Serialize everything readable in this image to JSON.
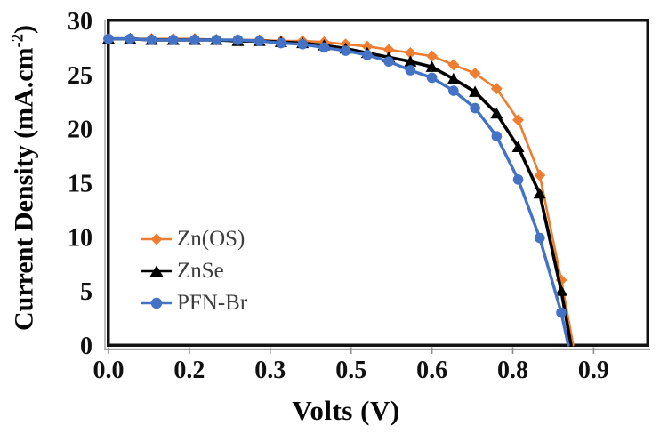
{
  "figure": {
    "background": "#ffffff",
    "plot_border_color": "#121212",
    "tick_color": "#8c8c8c",
    "accent_edge_color": "#a8a8a8"
  },
  "chart_data": {
    "type": "line",
    "title": "",
    "xlabel": "Volts (V)",
    "ylabel": "Current Density (mA.cm⁻²)",
    "ylabel_main": "Current Density (mA.cm",
    "ylabel_sup": "-2",
    "ylabel_close": ")",
    "xlim": [
      0,
      1.0
    ],
    "ylim": [
      0,
      30
    ],
    "grid": false,
    "legend_position": "inside lower-left",
    "x_ticks": [
      {
        "v": 0.0,
        "label": "0.0"
      },
      {
        "v": 0.15,
        "label": "0.2"
      },
      {
        "v": 0.3,
        "label": "0.3"
      },
      {
        "v": 0.45,
        "label": "0.5"
      },
      {
        "v": 0.6,
        "label": "0.6"
      },
      {
        "v": 0.75,
        "label": "0.8"
      },
      {
        "v": 0.9,
        "label": "0.9"
      }
    ],
    "y_ticks": [
      {
        "v": 0,
        "label": "0"
      },
      {
        "v": 5,
        "label": "5"
      },
      {
        "v": 10,
        "label": "10"
      },
      {
        "v": 15,
        "label": "15"
      },
      {
        "v": 20,
        "label": "20"
      },
      {
        "v": 25,
        "label": "25"
      },
      {
        "v": 30,
        "label": "30"
      }
    ],
    "series": [
      {
        "name": "Zn(OS)",
        "color": "#ED7D31",
        "marker": "diamond",
        "line_width": 2.6,
        "x": [
          0.0,
          0.04,
          0.08,
          0.12,
          0.16,
          0.2,
          0.24,
          0.28,
          0.32,
          0.36,
          0.4,
          0.44,
          0.48,
          0.52,
          0.56,
          0.6,
          0.64,
          0.68,
          0.72,
          0.76,
          0.8,
          0.84,
          0.862
        ],
        "y": [
          28.3,
          28.3,
          28.3,
          28.3,
          28.3,
          28.2,
          28.2,
          28.2,
          28.1,
          28.1,
          28.0,
          27.8,
          27.6,
          27.3,
          27.0,
          26.7,
          25.9,
          25.1,
          23.7,
          20.8,
          15.7,
          6.0,
          0
        ]
      },
      {
        "name": "ZnSe",
        "color": "#000000",
        "marker": "triangle",
        "line_width": 3.6,
        "x": [
          0.0,
          0.04,
          0.08,
          0.12,
          0.16,
          0.2,
          0.24,
          0.28,
          0.32,
          0.36,
          0.4,
          0.44,
          0.48,
          0.52,
          0.56,
          0.6,
          0.64,
          0.68,
          0.72,
          0.76,
          0.8,
          0.84,
          0.858
        ],
        "y": [
          28.3,
          28.3,
          28.2,
          28.2,
          28.2,
          28.2,
          28.1,
          28.1,
          28.0,
          27.9,
          27.7,
          27.4,
          27.0,
          26.6,
          26.2,
          25.7,
          24.6,
          23.4,
          21.4,
          18.3,
          14.0,
          5.0,
          0
        ]
      },
      {
        "name": "PFN-Br",
        "color": "#4472C4",
        "marker": "circle",
        "line_width": 3.4,
        "x": [
          0.0,
          0.04,
          0.08,
          0.12,
          0.16,
          0.2,
          0.24,
          0.28,
          0.32,
          0.36,
          0.4,
          0.44,
          0.48,
          0.52,
          0.56,
          0.6,
          0.64,
          0.68,
          0.72,
          0.76,
          0.8,
          0.84,
          0.853
        ],
        "y": [
          28.3,
          28.3,
          28.2,
          28.2,
          28.2,
          28.2,
          28.2,
          28.1,
          27.9,
          27.8,
          27.5,
          27.2,
          26.8,
          26.2,
          25.4,
          24.7,
          23.5,
          21.9,
          19.3,
          15.3,
          9.9,
          3.0,
          0
        ]
      }
    ]
  }
}
